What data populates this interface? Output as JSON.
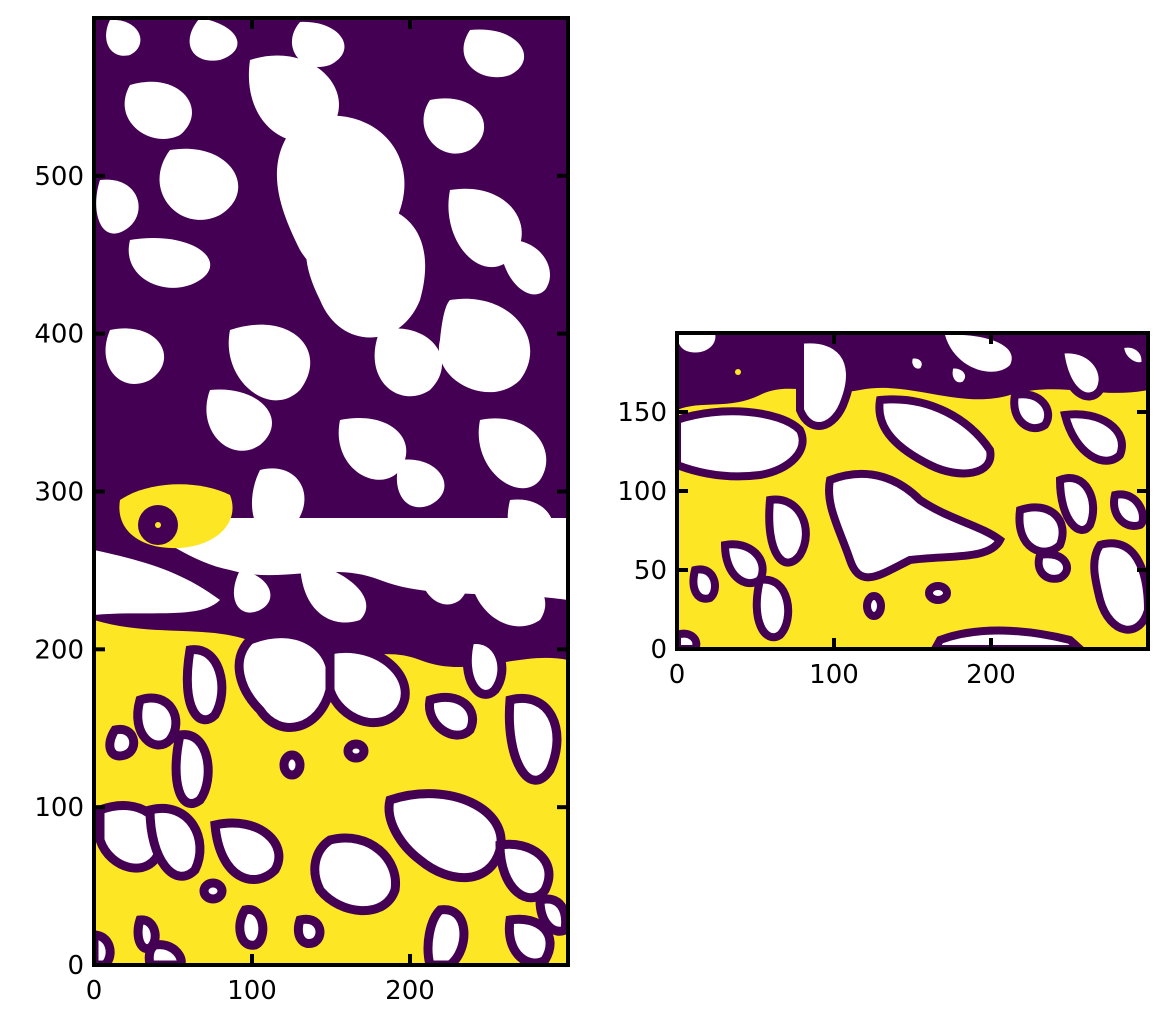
{
  "chart_data": [
    {
      "type": "heatmap",
      "colormap": "viridis",
      "colors": {
        "low": "#440154",
        "high": "#fde725",
        "masked": "#ffffff"
      },
      "xlim": [
        0,
        300
      ],
      "ylim": [
        0,
        600
      ],
      "xticks": [
        0,
        100,
        200
      ],
      "yticks": [
        0,
        100,
        200,
        300,
        400,
        500
      ],
      "xtick_labels": [
        "0",
        "100",
        "200"
      ],
      "ytick_labels": [
        "0",
        "100",
        "200",
        "300",
        "400",
        "500"
      ],
      "tick_direction": "in",
      "grid": false,
      "title": "",
      "xlabel": "",
      "ylabel": "",
      "description_regions": {
        "low_value_band_y": [
          280,
          600
        ],
        "high_value_band_y": [
          0,
          250
        ]
      }
    },
    {
      "type": "heatmap",
      "colormap": "viridis",
      "colors": {
        "low": "#440154",
        "high": "#fde725",
        "masked": "#ffffff"
      },
      "xlim": [
        0,
        300
      ],
      "ylim": [
        0,
        200
      ],
      "xticks": [
        0,
        100,
        200
      ],
      "yticks": [
        0,
        50,
        100,
        150
      ],
      "xtick_labels": [
        "0",
        "100",
        "200"
      ],
      "ytick_labels": [
        "0",
        "50",
        "100",
        "150"
      ],
      "tick_direction": "in",
      "grid": false,
      "title": "",
      "xlabel": "",
      "ylabel": ""
    }
  ]
}
